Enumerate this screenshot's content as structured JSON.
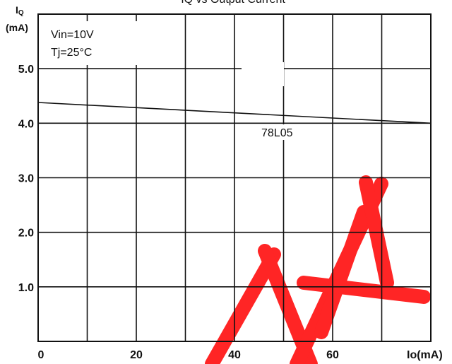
{
  "chart_data": {
    "type": "line",
    "title": "IQ vs Output Current",
    "ylabel_main": "I",
    "ylabel_sub": "Q",
    "ylabel_unit": "(mA)",
    "xlabel": "Io(mA)",
    "xlim": [
      0,
      80
    ],
    "ylim": [
      0,
      6
    ],
    "grid": true,
    "x_ticks": [
      0,
      20,
      40,
      60
    ],
    "x_tick_labels": [
      "0",
      "20",
      "40",
      "60"
    ],
    "y_ticks": [
      1,
      2,
      3,
      4,
      5
    ],
    "y_tick_labels": [
      "1.0",
      "2.0",
      "3.0",
      "4.0",
      "5.0"
    ],
    "conditions": [
      "Vin=10V",
      "Tj=25°C"
    ],
    "series": [
      {
        "name": "78L05",
        "x": [
          0,
          80
        ],
        "y": [
          4.38,
          4.0
        ]
      }
    ]
  },
  "colors": {
    "axis": "#111111",
    "grid": "#111111",
    "line": "#111111",
    "watermark": "#ff1a1a"
  }
}
